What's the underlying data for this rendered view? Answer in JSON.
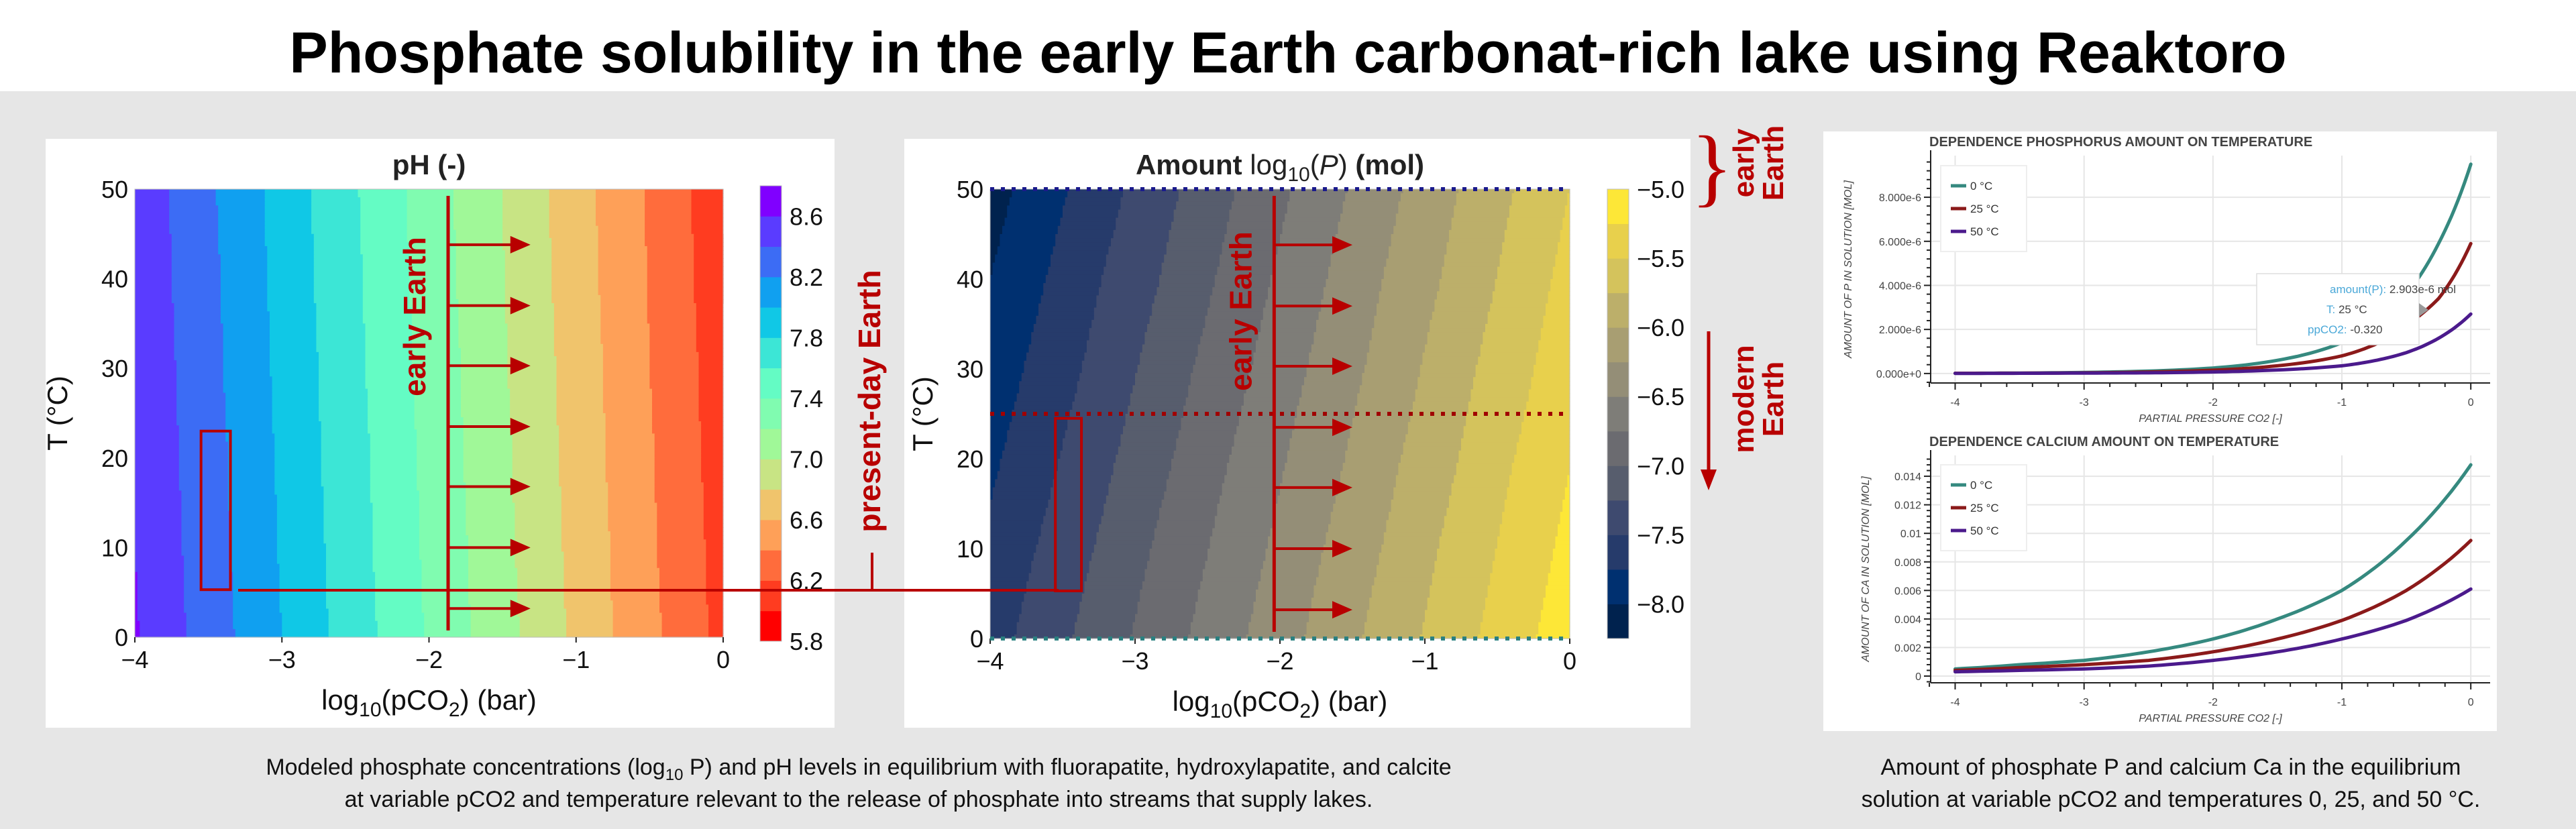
{
  "title": "Phosphate solubility in the early Earth carbonat-rich lake using Reaktoro",
  "colors": {
    "background": "#e6e6e6",
    "annotation_red": "#b80000"
  },
  "annotations": {
    "early_earth": "early Earth",
    "present_day": "present-day Earth",
    "side_early": [
      "early",
      "Earth"
    ],
    "side_modern": [
      "modern",
      "Earth"
    ]
  },
  "chart_data": [
    {
      "type": "heatmap",
      "title": "pH (-)",
      "xlabel_parts": [
        "log",
        "10",
        "(pCO",
        "2",
        ") (bar)"
      ],
      "ylabel": "T (°C)",
      "xlim": [
        -4,
        0
      ],
      "ylim": [
        0,
        50
      ],
      "x_tick_labels": [
        "−4",
        "−3",
        "−2",
        "−1",
        "0"
      ],
      "y_tick_labels": [
        "0",
        "10",
        "20",
        "30",
        "40",
        "50"
      ],
      "x": [
        -4,
        -3.8,
        -3.6,
        -3.4,
        -3.2,
        -3,
        -2.8,
        -2.6,
        -2.4,
        -2.2,
        -2,
        -1.8,
        -1.6,
        -1.4,
        -1.2,
        -1,
        -0.8,
        -0.6,
        -0.4,
        -0.2,
        0
      ],
      "y": [
        0,
        10,
        20,
        30,
        40,
        50
      ],
      "z": [
        [
          8.62,
          8.49,
          8.37,
          8.25,
          8.12,
          8.0,
          7.87,
          7.75,
          7.63,
          7.5,
          7.38,
          7.25,
          7.13,
          7.01,
          6.88,
          6.76,
          6.63,
          6.51,
          6.39,
          6.26,
          6.14
        ],
        [
          8.6,
          8.48,
          8.35,
          8.23,
          8.11,
          7.98,
          7.86,
          7.73,
          7.61,
          7.49,
          7.36,
          7.24,
          7.11,
          6.99,
          6.87,
          6.74,
          6.62,
          6.49,
          6.37,
          6.25,
          6.12
        ],
        [
          8.59,
          8.46,
          8.34,
          8.22,
          8.09,
          7.97,
          7.84,
          7.72,
          7.6,
          7.47,
          7.35,
          7.22,
          7.1,
          6.98,
          6.85,
          6.73,
          6.6,
          6.48,
          6.36,
          6.23,
          6.11
        ],
        [
          8.57,
          8.45,
          8.32,
          8.2,
          8.08,
          7.95,
          7.83,
          7.7,
          7.58,
          7.46,
          7.33,
          7.21,
          7.08,
          6.96,
          6.84,
          6.71,
          6.59,
          6.46,
          6.34,
          6.22,
          6.09
        ],
        [
          8.56,
          8.43,
          8.31,
          8.19,
          8.06,
          7.94,
          7.81,
          7.69,
          7.57,
          7.44,
          7.32,
          7.19,
          7.07,
          6.95,
          6.82,
          6.7,
          6.57,
          6.45,
          6.33,
          6.2,
          6.08
        ],
        [
          8.54,
          8.42,
          8.3,
          8.17,
          8.05,
          7.92,
          7.8,
          7.68,
          7.55,
          7.43,
          7.3,
          7.18,
          7.06,
          6.93,
          6.81,
          6.68,
          6.56,
          6.44,
          6.31,
          6.19,
          6.06
        ]
      ],
      "colorbar": {
        "min": 5.8,
        "step": 0.2,
        "colors": [
          "#ff0000",
          "#ff3c20",
          "#ff6c3c",
          "#fea058",
          "#f0c46c",
          "#c8e484",
          "#a0f898",
          "#80fcb0",
          "#64fcc4",
          "#3ce6d6",
          "#10c8e6",
          "#10a0f0",
          "#3c6cf5",
          "#5a3cff",
          "#8000ff"
        ],
        "ticks": [
          8.6,
          8.2,
          7.8,
          7.4,
          7.0,
          6.6,
          6.2,
          5.8
        ],
        "tick_labels": [
          "8.6",
          "8.2",
          "7.8",
          "7.4",
          "7.0",
          "6.6",
          "6.2",
          "5.8"
        ]
      },
      "early_earth_line": {
        "x": -1.87,
        "arrow_to": -1.31,
        "arrow_T": [
          3.2,
          10,
          16.8,
          23.5,
          30.3,
          37,
          43.8
        ]
      },
      "highlight_box": {
        "x": [
          -3.55,
          -3.35
        ],
        "T": [
          5.3,
          23
        ]
      }
    },
    {
      "type": "heatmap",
      "title_parts": [
        "Amount ",
        "log",
        "10",
        "(",
        "P",
        ")",
        " (mol)"
      ],
      "xlabel_parts": [
        "log",
        "10",
        "(pCO",
        "2",
        ") (bar)"
      ],
      "ylabel": "T (°C)",
      "xlim": [
        -4,
        0
      ],
      "ylim": [
        0,
        50
      ],
      "x_tick_labels": [
        "−4",
        "−3",
        "−2",
        "−1",
        "0"
      ],
      "y_tick_labels": [
        "0",
        "10",
        "20",
        "30",
        "40",
        "50"
      ],
      "x": [
        -4,
        -3.8,
        -3.6,
        -3.4,
        -3.2,
        -3,
        -2.8,
        -2.6,
        -2.4,
        -2.2,
        -2,
        -1.8,
        -1.6,
        -1.4,
        -1.2,
        -1,
        -0.8,
        -0.6,
        -0.4,
        -0.2,
        0
      ],
      "y": [
        0,
        10,
        20,
        30,
        40,
        50
      ],
      "z": [
        [
          -7.6,
          -7.48,
          -7.35,
          -7.23,
          -7.1,
          -6.98,
          -6.85,
          -6.73,
          -6.6,
          -6.48,
          -6.35,
          -6.23,
          -6.1,
          -5.98,
          -5.85,
          -5.73,
          -5.6,
          -5.48,
          -5.35,
          -5.23,
          -5.1
        ],
        [
          -7.7,
          -7.57,
          -7.45,
          -7.32,
          -7.2,
          -7.07,
          -6.94,
          -6.82,
          -6.69,
          -6.57,
          -6.44,
          -6.31,
          -6.19,
          -6.06,
          -5.94,
          -5.81,
          -5.68,
          -5.56,
          -5.43,
          -5.31,
          -5.18
        ],
        [
          -7.8,
          -7.67,
          -7.55,
          -7.42,
          -7.29,
          -7.17,
          -7.04,
          -6.91,
          -6.78,
          -6.66,
          -6.53,
          -6.4,
          -6.28,
          -6.15,
          -6.02,
          -5.9,
          -5.77,
          -5.64,
          -5.51,
          -5.39,
          -5.26
        ],
        [
          -7.9,
          -7.77,
          -7.64,
          -7.52,
          -7.39,
          -7.26,
          -7.13,
          -7.0,
          -6.88,
          -6.75,
          -6.62,
          -6.49,
          -6.36,
          -6.24,
          -6.11,
          -5.98,
          -5.85,
          -5.72,
          -5.6,
          -5.47,
          -5.34
        ],
        [
          -8.0,
          -7.87,
          -7.74,
          -7.61,
          -7.48,
          -7.36,
          -7.23,
          -7.1,
          -6.97,
          -6.84,
          -6.71,
          -6.58,
          -6.45,
          -6.32,
          -6.19,
          -6.07,
          -5.94,
          -5.81,
          -5.68,
          -5.55,
          -5.42
        ],
        [
          -8.1,
          -7.97,
          -7.84,
          -7.71,
          -7.58,
          -7.45,
          -7.32,
          -7.19,
          -7.06,
          -6.93,
          -6.8,
          -6.67,
          -6.54,
          -6.41,
          -6.28,
          -6.15,
          -6.02,
          -5.89,
          -5.76,
          -5.63,
          -5.5
        ]
      ],
      "colorbar": {
        "min": -8.25,
        "step": 0.25,
        "colors": [
          "#00224e",
          "#003070",
          "#263b6b",
          "#3e4a6f",
          "#575d6d",
          "#6b6b70",
          "#7e7d78",
          "#948e77",
          "#a89e72",
          "#bcaf6a",
          "#d4c35c",
          "#e8d04c",
          "#fde737"
        ],
        "ticks": [
          -5.0,
          -5.5,
          -6.0,
          -6.5,
          -7.0,
          -7.5,
          -8.0
        ],
        "tick_labels": [
          "−5.0",
          "−5.5",
          "−6.0",
          "−6.5",
          "−7.0",
          "−7.5",
          "−8.0"
        ]
      },
      "dotted_lines": [
        {
          "T": 50,
          "color": "#1a1a8c"
        },
        {
          "T": 25,
          "color": "#a00000"
        },
        {
          "T": 0,
          "color": "#2a8080"
        }
      ],
      "early_earth_line": {
        "x": -2.04,
        "arrow_to": -1.5,
        "arrow_T": [
          3.2,
          10,
          16.8,
          23.5,
          30.3,
          37,
          43.8
        ]
      },
      "highlight_box": {
        "x": [
          -3.55,
          -3.37
        ],
        "T": [
          5.3,
          24.5
        ]
      }
    },
    {
      "type": "line",
      "title": "DEPENDENCE PHOSPHORUS AMOUNT ON TEMPERATURE",
      "xlabel": "PARTIAL PRESSURE CO2 [-]",
      "ylabel": "AMOUNT OF P IN SOLUTION [MOL]",
      "xlim": [
        -4.19,
        0.15
      ],
      "ylim": [
        -4.3e-07,
        9.89e-06
      ],
      "x_ticks": [
        -4,
        -3,
        -2,
        -1,
        0
      ],
      "x_tick_labels": [
        "-4",
        "-3",
        "-2",
        "-1",
        "0"
      ],
      "y_ticks": [
        0,
        2e-06,
        4e-06,
        6e-06,
        8e-06
      ],
      "y_tick_labels": [
        "0.000e+0",
        "2.000e-6",
        "4.000e-6",
        "6.000e-6",
        "8.000e-6"
      ],
      "grid": true,
      "legend": "top-left",
      "x": [
        -4,
        -3.5,
        -3,
        -2.5,
        -2,
        -1.5,
        -1,
        -0.75,
        -0.5,
        -0.25,
        0
      ],
      "series": [
        {
          "name": "0 °C",
          "color": "#35897f",
          "values": [
            1e-08,
            2e-08,
            5e-08,
            1.1e-07,
            2.5e-07,
            6e-07,
            1.4e-06,
            2.2e-06,
            3.6e-06,
            5.9e-06,
            9.5e-06
          ]
        },
        {
          "name": "25 °C",
          "color": "#8b1a1a",
          "values": [
            1e-08,
            1.5e-08,
            3e-08,
            7e-08,
            1.5e-07,
            3.5e-07,
            8e-07,
            1.3e-06,
            2.2e-06,
            3.4e-06,
            5.9e-06
          ]
        },
        {
          "name": "50 °C",
          "color": "#4b1a8c",
          "values": [
            5e-09,
            1e-08,
            2e-08,
            3e-08,
            7e-08,
            1.6e-07,
            3.5e-07,
            5.8e-07,
            9.5e-07,
            1.6e-06,
            2.7e-06
          ]
        }
      ],
      "tooltip": {
        "rows": [
          {
            "label": "amount(P): ",
            "value": "2.903e-6 mol"
          },
          {
            "label": "T: ",
            "value": "25 °C"
          },
          {
            "label": "ppCO2: ",
            "value": "-0.320"
          }
        ]
      }
    },
    {
      "type": "line",
      "title": "DEPENDENCE CALCIUM AMOUNT ON TEMPERATURE",
      "xlabel": "PARTIAL PRESSURE CO2 [-]",
      "ylabel": "AMOUNT OF CA IN SOLUTION [MOL]",
      "xlim": [
        -4.19,
        0.15
      ],
      "ylim": [
        -0.00047,
        0.01546
      ],
      "x_ticks": [
        -4,
        -3,
        -2,
        -1,
        0
      ],
      "x_tick_labels": [
        "-4",
        "-3",
        "-2",
        "-1",
        "0"
      ],
      "y_ticks": [
        0,
        0.002,
        0.004,
        0.006,
        0.008,
        0.01,
        0.012,
        0.014
      ],
      "y_tick_labels": [
        "0",
        "0.002",
        "0.004",
        "0.006",
        "0.008",
        "0.01",
        "0.012",
        "0.014"
      ],
      "grid": true,
      "legend": "top-left",
      "x": [
        -4,
        -3.5,
        -3,
        -2.5,
        -2,
        -1.5,
        -1,
        -0.5,
        0
      ],
      "series": [
        {
          "name": "0 °C",
          "color": "#35897f",
          "values": [
            0.0005,
            0.0008,
            0.0011,
            0.0017,
            0.0026,
            0.004,
            0.006,
            0.0095,
            0.0148
          ]
        },
        {
          "name": "25 °C",
          "color": "#8b1a1a",
          "values": [
            0.0004,
            0.0006,
            0.0008,
            0.0011,
            0.0017,
            0.0026,
            0.0039,
            0.006,
            0.0095
          ]
        },
        {
          "name": "50 °C",
          "color": "#4b1a8c",
          "values": [
            0.0003,
            0.0004,
            0.0005,
            0.0007,
            0.0011,
            0.0017,
            0.0026,
            0.0039,
            0.0061
          ]
        }
      ]
    }
  ],
  "captions": {
    "left_parts": [
      "Modeled phosphate concentrations (log",
      "10",
      " P) and pH levels in equilibrium with fluorapatite, hydroxylapatite, and calcite"
    ],
    "left_line2": "at variable pCO2 and temperature relevant to the release of phosphate into streams that supply lakes.",
    "right": [
      "Amount of phosphate P and calcium Ca in the equilibrium",
      "solution at variable pCO2 and temperatures 0, 25, and 50 °C."
    ]
  }
}
